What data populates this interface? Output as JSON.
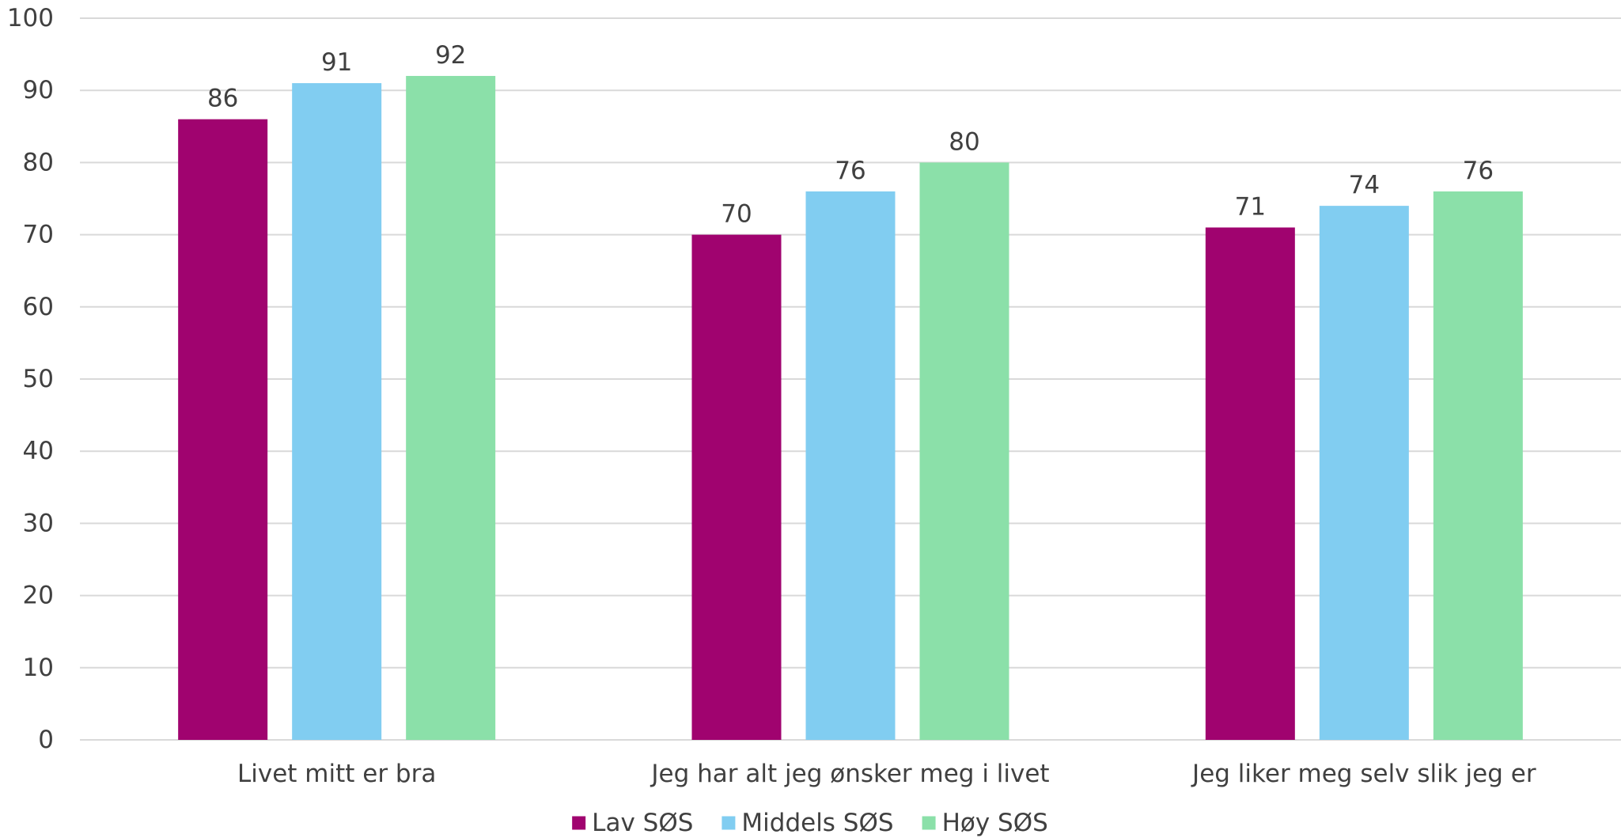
{
  "chart_data": {
    "type": "bar",
    "categories": [
      "Livet mitt er bra",
      "Jeg har alt jeg ønsker meg i livet",
      "Jeg liker meg selv slik jeg er"
    ],
    "series": [
      {
        "name": "Lav SØS",
        "color": "#a0036f",
        "values": [
          86,
          70,
          71
        ]
      },
      {
        "name": "Middels SØS",
        "color": "#81cdf1",
        "values": [
          91,
          76,
          74
        ]
      },
      {
        "name": "Høy SØS",
        "color": "#8be0a9",
        "values": [
          92,
          80,
          76
        ]
      }
    ],
    "ylim": [
      0,
      100
    ],
    "yticks": [
      0,
      10,
      20,
      30,
      40,
      50,
      60,
      70,
      80,
      90,
      100
    ],
    "ytick_labels": [
      "0",
      "10",
      "20",
      "30",
      "40",
      "50",
      "60",
      "70",
      "80",
      "90",
      "100"
    ],
    "title": "",
    "xlabel": "",
    "ylabel": "",
    "grid": true,
    "gridline_color": "#d9d9d9",
    "legend_position": "bottom",
    "data_labels": true
  }
}
